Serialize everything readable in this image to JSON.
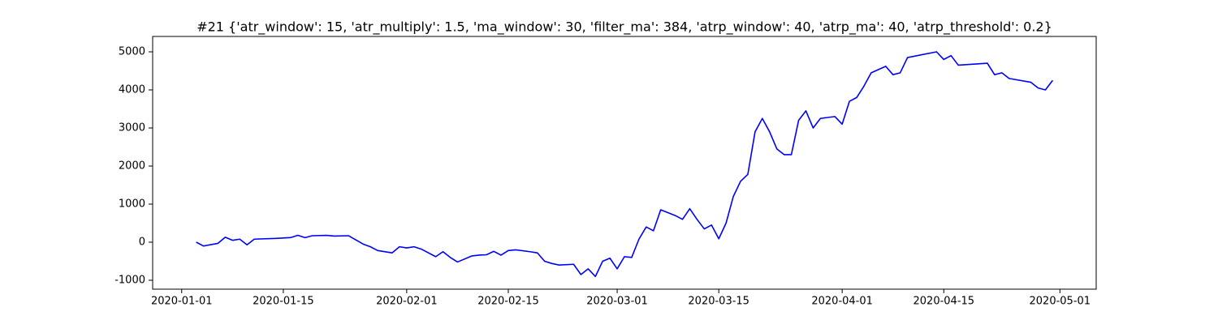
{
  "chart_data": {
    "type": "line",
    "title": "#21 {'atr_window': 15, 'atr_multiply': 1.5, 'ma_window': 30, 'filter_ma': 384, 'atrp_window': 40, 'atrp_ma': 40, 'atrp_threshold': 0.2}",
    "x": [
      "2020-01-03",
      "2020-01-04",
      "2020-01-06",
      "2020-01-07",
      "2020-01-08",
      "2020-01-09",
      "2020-01-10",
      "2020-01-11",
      "2020-01-14",
      "2020-01-16",
      "2020-01-17",
      "2020-01-18",
      "2020-01-19",
      "2020-01-21",
      "2020-01-22",
      "2020-01-24",
      "2020-01-25",
      "2020-01-26",
      "2020-01-27",
      "2020-01-28",
      "2020-01-30",
      "2020-01-31",
      "2020-02-01",
      "2020-02-02",
      "2020-02-03",
      "2020-02-05",
      "2020-02-06",
      "2020-02-07",
      "2020-02-08",
      "2020-02-10",
      "2020-02-11",
      "2020-02-12",
      "2020-02-13",
      "2020-02-14",
      "2020-02-15",
      "2020-02-16",
      "2020-02-18",
      "2020-02-19",
      "2020-02-20",
      "2020-02-21",
      "2020-02-22",
      "2020-02-24",
      "2020-02-25",
      "2020-02-26",
      "2020-02-27",
      "2020-02-28",
      "2020-02-29",
      "2020-03-01",
      "2020-03-02",
      "2020-03-03",
      "2020-03-04",
      "2020-03-05",
      "2020-03-06",
      "2020-03-07",
      "2020-03-09",
      "2020-03-10",
      "2020-03-11",
      "2020-03-12",
      "2020-03-13",
      "2020-03-14",
      "2020-03-15",
      "2020-03-16",
      "2020-03-17",
      "2020-03-18",
      "2020-03-19",
      "2020-03-20",
      "2020-03-21",
      "2020-03-22",
      "2020-03-23",
      "2020-03-24",
      "2020-03-25",
      "2020-03-26",
      "2020-03-27",
      "2020-03-28",
      "2020-03-29",
      "2020-03-31",
      "2020-04-01",
      "2020-04-02",
      "2020-04-03",
      "2020-04-04",
      "2020-04-05",
      "2020-04-07",
      "2020-04-08",
      "2020-04-09",
      "2020-04-10",
      "2020-04-14",
      "2020-04-15",
      "2020-04-16",
      "2020-04-17",
      "2020-04-21",
      "2020-04-22",
      "2020-04-23",
      "2020-04-24",
      "2020-04-27",
      "2020-04-28",
      "2020-04-29",
      "2020-04-30"
    ],
    "series": [
      {
        "color": "#0000ff",
        "values": [
          0,
          -100,
          -30,
          130,
          50,
          80,
          -70,
          80,
          100,
          120,
          180,
          120,
          170,
          180,
          160,
          170,
          60,
          -50,
          -120,
          -220,
          -280,
          -120,
          -150,
          -120,
          -180,
          -380,
          -250,
          -400,
          -520,
          -360,
          -340,
          -330,
          -240,
          -340,
          -220,
          -200,
          -250,
          -280,
          -500,
          -560,
          -600,
          -580,
          -850,
          -700,
          -900,
          -500,
          -420,
          -700,
          -380,
          -400,
          80,
          400,
          300,
          850,
          700,
          600,
          880,
          600,
          350,
          450,
          90,
          500,
          1200,
          1600,
          1780,
          2900,
          3250,
          2900,
          2450,
          2300,
          2300,
          3200,
          3450,
          3000,
          3250,
          3300,
          3100,
          3700,
          3800,
          4100,
          4450,
          4620,
          4400,
          4450,
          4850,
          5000,
          4800,
          4900,
          4650,
          4700,
          4400,
          4450,
          4300,
          4200,
          4050,
          4000,
          4250
        ]
      }
    ],
    "xlim": [
      "2019-12-28",
      "2020-05-06"
    ],
    "xticks": [
      "2020-01-01",
      "2020-01-15",
      "2020-02-01",
      "2020-02-15",
      "2020-03-01",
      "2020-03-15",
      "2020-04-01",
      "2020-04-15",
      "2020-05-01"
    ],
    "ylim": [
      -1234,
      5404
    ],
    "yticks": [
      -1000,
      0,
      1000,
      2000,
      3000,
      4000,
      5000
    ],
    "grid": false
  }
}
